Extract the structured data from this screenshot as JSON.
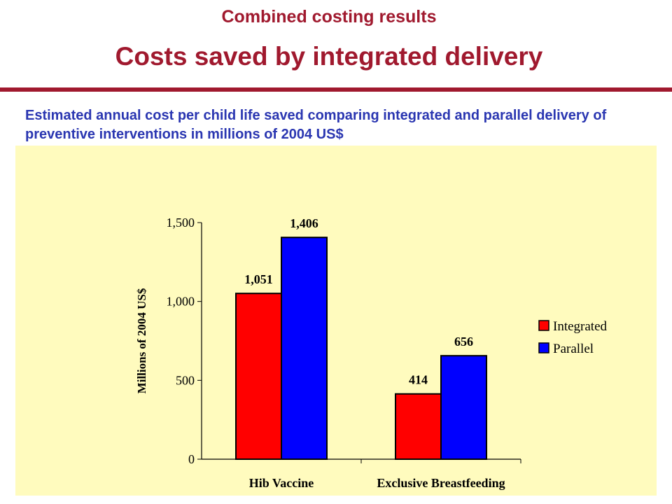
{
  "slide": {
    "kicker": "Combined costing results",
    "title": "Costs saved by integrated delivery",
    "subtitle": "Estimated annual cost per child life saved comparing integrated and parallel delivery of preventive interventions in millions of 2004 US$"
  },
  "colors": {
    "title": "#a0192e",
    "subtitle": "#2a36b1",
    "panel": "#fffbbe",
    "integrated": "#ff0000",
    "parallel": "#0000ff"
  },
  "chart_data": {
    "type": "bar",
    "categories": [
      "Hib Vaccine",
      "Exclusive Breastfeeding"
    ],
    "series": [
      {
        "name": "Integrated",
        "values": [
          1051,
          414
        ],
        "labels": [
          "1,051",
          "414"
        ],
        "color": "#ff0000"
      },
      {
        "name": "Parallel",
        "values": [
          1406,
          656
        ],
        "labels": [
          "1,406",
          "656"
        ],
        "color": "#0000ff"
      }
    ],
    "ylabel": "Millions of 2004 US$",
    "ylim": [
      0,
      1500
    ],
    "yticks": [
      0,
      500,
      1000,
      1500
    ],
    "ytick_labels": [
      "0",
      "500",
      "1,000",
      "1,500"
    ],
    "legend_position": "right",
    "grid": false
  }
}
